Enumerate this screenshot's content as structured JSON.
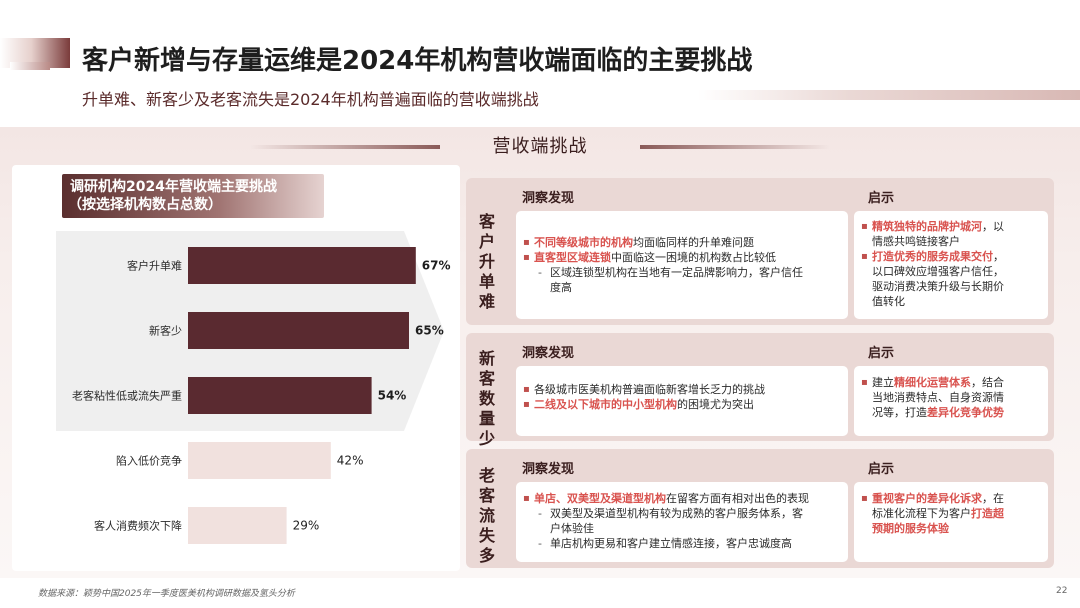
{
  "header": {
    "title": "客户新增与存量运维是2024年机构营收端面临的主要挑战",
    "subtitle": "升单难、新客少及老客流失是2024年机构普遍面临的营收端挑战"
  },
  "section_title": "营收端挑战",
  "chart_data": {
    "type": "bar",
    "orientation": "horizontal",
    "title": "调研机构2024年营收端主要挑战",
    "subtitle": "（按选择机构数占总数）",
    "categories": [
      "客户升单难",
      "新客少",
      "老客粘性低或流失严重",
      "陷入低价竞争",
      "客人消费频次下降"
    ],
    "values": [
      67,
      65,
      54,
      42,
      29
    ],
    "value_labels": [
      "67%",
      "65%",
      "54%",
      "42%",
      "29%"
    ],
    "xlim": [
      0,
      100
    ],
    "colors": [
      "#5a2a30",
      "#5a2a30",
      "#5a2a30",
      "#f1e1de",
      "#f1e1de"
    ],
    "grid": false,
    "legend": "none"
  },
  "cards": [
    {
      "head": [
        "客",
        "户",
        "升",
        "单",
        "难"
      ],
      "insight_label": "洞察发现",
      "tip_label": "启示",
      "insight_lines": [
        {
          "kind": "bullet",
          "parts": [
            {
              "t": "不同等级城市的机构",
              "hl": true
            },
            {
              "t": "均面临同样的升单难问题",
              "hl": false
            }
          ]
        },
        {
          "kind": "bullet",
          "parts": [
            {
              "t": "直客型区域连锁",
              "hl": true
            },
            {
              "t": "中面临这一困境的机构数占比较低",
              "hl": false
            }
          ]
        },
        {
          "kind": "dash",
          "parts": [
            {
              "t": "区域连锁型机构在当地有一定品牌影响力，客户信任",
              "hl": false
            }
          ]
        },
        {
          "kind": "cont",
          "parts": [
            {
              "t": "度高",
              "hl": false
            }
          ]
        }
      ],
      "tip_lines": [
        {
          "kind": "bullet",
          "parts": [
            {
              "t": "精筑独特的品牌护城河",
              "hl": true
            },
            {
              "t": "，以",
              "hl": false
            }
          ]
        },
        {
          "kind": "cont",
          "parts": [
            {
              "t": "情感共鸣链接客户",
              "hl": false
            }
          ]
        },
        {
          "kind": "bullet",
          "parts": [
            {
              "t": "打造优秀的服务成果交付",
              "hl": true
            },
            {
              "t": "，",
              "hl": false
            }
          ]
        },
        {
          "kind": "cont",
          "parts": [
            {
              "t": "以口碑效应增强客户信任，",
              "hl": false
            }
          ]
        },
        {
          "kind": "cont",
          "parts": [
            {
              "t": "驱动消费决策升级与长期价",
              "hl": false
            }
          ]
        },
        {
          "kind": "cont",
          "parts": [
            {
              "t": "值转化",
              "hl": false
            }
          ]
        }
      ]
    },
    {
      "head": [
        "新",
        "客",
        "数",
        "量",
        "少"
      ],
      "insight_label": "洞察发现",
      "tip_label": "启示",
      "insight_lines": [
        {
          "kind": "bullet",
          "parts": [
            {
              "t": "各级城市医美机构普遍面临新客增长乏力的挑战",
              "hl": false
            }
          ]
        },
        {
          "kind": "bullet",
          "parts": [
            {
              "t": "二线及以下城市的中小型机构",
              "hl": true
            },
            {
              "t": "的困境尤为突出",
              "hl": false
            }
          ]
        }
      ],
      "tip_lines": [
        {
          "kind": "bullet",
          "parts": [
            {
              "t": "建立",
              "hl": false
            },
            {
              "t": "精细化运营体系",
              "hl": true
            },
            {
              "t": "，结合",
              "hl": false
            }
          ]
        },
        {
          "kind": "cont",
          "parts": [
            {
              "t": "当地消费特点、自身资源情",
              "hl": false
            }
          ]
        },
        {
          "kind": "cont",
          "parts": [
            {
              "t": "况等，打造",
              "hl": false
            },
            {
              "t": "差异化竞争优势",
              "hl": true
            }
          ]
        }
      ]
    },
    {
      "head": [
        "老",
        "客",
        "流",
        "失",
        "多"
      ],
      "insight_label": "洞察发现",
      "tip_label": "启示",
      "insight_lines": [
        {
          "kind": "bullet",
          "parts": [
            {
              "t": "单店、双美型及渠道型机构",
              "hl": true
            },
            {
              "t": "在留客方面有相对出色的表现",
              "hl": false
            }
          ]
        },
        {
          "kind": "dash",
          "parts": [
            {
              "t": "双美型及渠道型机构有较为成熟的客户服务体系，客",
              "hl": false
            }
          ]
        },
        {
          "kind": "cont",
          "parts": [
            {
              "t": "户体验佳",
              "hl": false
            }
          ]
        },
        {
          "kind": "dash",
          "parts": [
            {
              "t": "单店机构更易和客户建立情感连接，客户忠诚度高",
              "hl": false
            }
          ]
        }
      ],
      "tip_lines": [
        {
          "kind": "bullet",
          "parts": [
            {
              "t": "重视客户的差异化诉求",
              "hl": true
            },
            {
              "t": "，在",
              "hl": false
            }
          ]
        },
        {
          "kind": "cont",
          "parts": [
            {
              "t": "标准化流程下为客户",
              "hl": false
            },
            {
              "t": "打造超",
              "hl": true
            }
          ]
        },
        {
          "kind": "cont",
          "parts": [
            {
              "t": "预期的服务体验",
              "hl": true
            }
          ]
        }
      ]
    }
  ],
  "footer": {
    "source": "数据来源：颖势中国2025年一季度医美机构调研数据及氢头分析",
    "page": "22"
  }
}
